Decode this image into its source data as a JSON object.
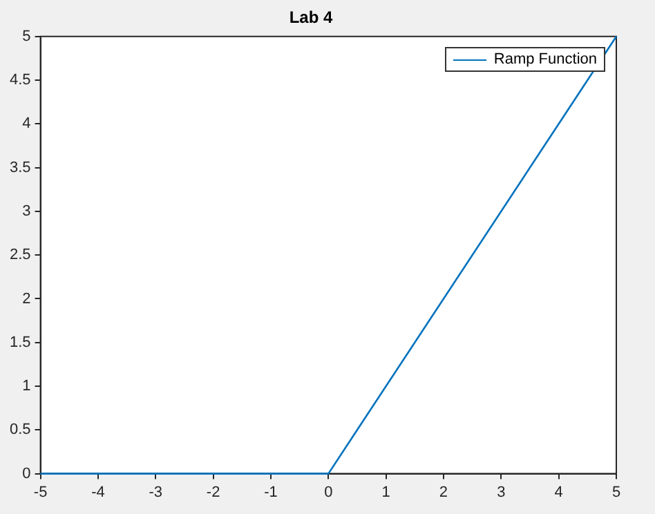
{
  "chart_data": {
    "type": "line",
    "title": "Lab 4",
    "series": [
      {
        "name": "Ramp Function",
        "color": "#0072bd",
        "x": [
          -5,
          0,
          5
        ],
        "values": [
          0,
          0,
          5
        ]
      }
    ],
    "xlim": [
      -5,
      5
    ],
    "xticks": [
      -5,
      -4,
      -3,
      -2,
      -1,
      0,
      1,
      2,
      3,
      4,
      5
    ],
    "ylim": [
      0,
      5
    ],
    "yticks": [
      0,
      0.5,
      1,
      1.5,
      2,
      2.5,
      3,
      3.5,
      4,
      4.5,
      5
    ],
    "grid": false,
    "legend": "top right",
    "marker": "none",
    "line_style": "solid"
  }
}
